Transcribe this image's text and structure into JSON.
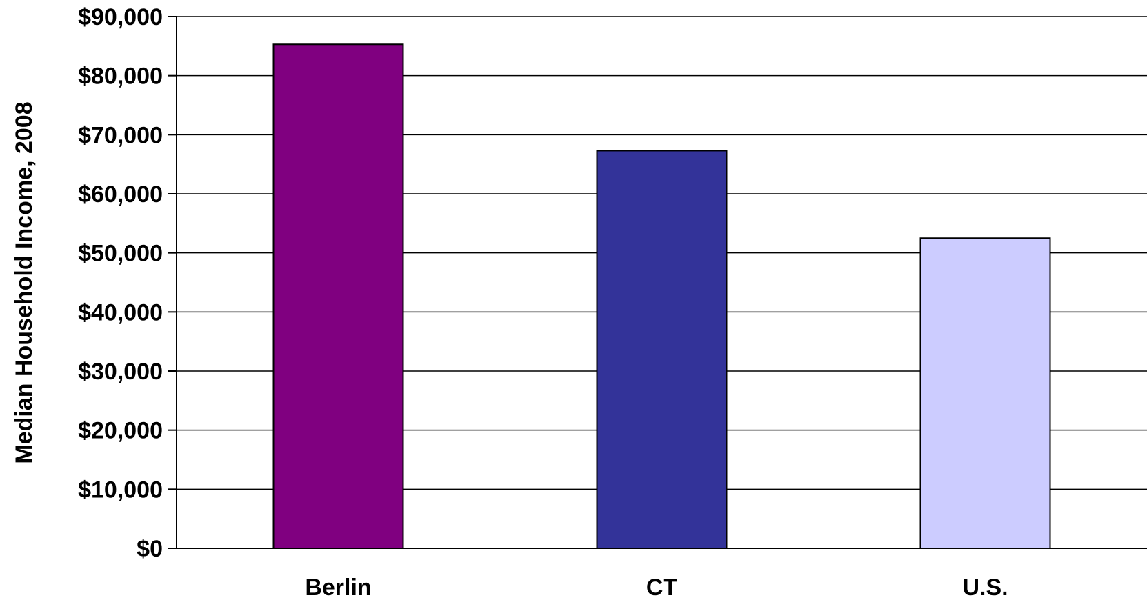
{
  "chart_data": {
    "type": "bar",
    "categories": [
      "Berlin",
      "CT",
      "U.S."
    ],
    "values": [
      85300,
      67300,
      52500
    ],
    "colors": [
      "#800080",
      "#333399",
      "#ccccff"
    ],
    "ylabel": "Median Household Income, 2008",
    "xlabel": "",
    "ylim": [
      0,
      90000
    ],
    "yticks": [
      0,
      10000,
      20000,
      30000,
      40000,
      50000,
      60000,
      70000,
      80000,
      90000
    ],
    "ytick_labels": [
      "$0",
      "$10,000",
      "$20,000",
      "$30,000",
      "$40,000",
      "$50,000",
      "$60,000",
      "$70,000",
      "$80,000",
      "$90,000"
    ],
    "grid": true,
    "legend": "none"
  }
}
